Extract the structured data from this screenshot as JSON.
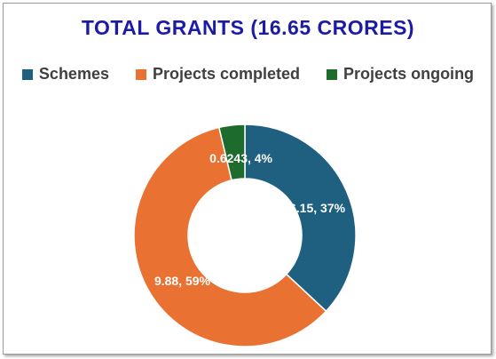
{
  "chart_data": {
    "type": "pie",
    "style": "doughnut",
    "title": "TOTAL GRANTS (16.65 CRORES)",
    "categories": [
      "Schemes",
      "Projects completed",
      "Projects ongoing"
    ],
    "values": [
      6.15,
      9.88,
      0.6243
    ],
    "percent_labels": [
      "37%",
      "59%",
      "4%"
    ],
    "data_labels": [
      "6.15, 37%",
      "9.88, 59%",
      "0.6243, 4%"
    ],
    "colors": [
      "#1F5F80",
      "#E97132",
      "#1E6B2E"
    ],
    "legend_position": "top"
  },
  "colors": {
    "title": "#1B1BA8",
    "legend_text": "#404040",
    "label_text": "#FFFFFF"
  }
}
